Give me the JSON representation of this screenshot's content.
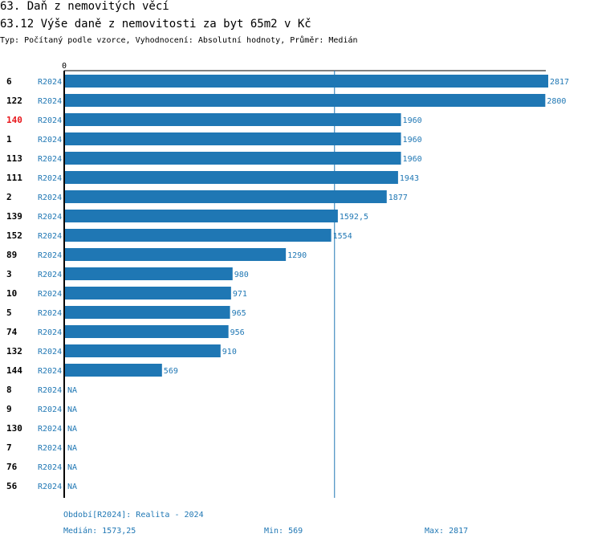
{
  "header": {
    "title": "63. Daň z nemovitých věcí",
    "subtitle": "63.12 Výše daně z nemovitosti za byt 65m2 v Kč",
    "meta": "Typ: Počítaný podle vzorce, Vyhodnocení: Absolutní hodnoty, Průměr: Medián"
  },
  "colors": {
    "bar": "#1f77b4",
    "highlight": "#e8161b",
    "text": "#000000",
    "accent": "#1f77b4"
  },
  "chart_data": {
    "type": "bar",
    "orientation": "horizontal",
    "series_name": "R2024",
    "x_tick_labels": [
      "0"
    ],
    "xlim": [
      0,
      2900
    ],
    "median": 1573.25,
    "highlight_category": "140",
    "categories": [
      "6",
      "122",
      "140",
      "1",
      "113",
      "111",
      "2",
      "139",
      "152",
      "89",
      "3",
      "10",
      "5",
      "74",
      "132",
      "144",
      "8",
      "9",
      "130",
      "7",
      "76",
      "56"
    ],
    "values": [
      2817,
      2800,
      1960,
      1960,
      1960,
      1943,
      1877,
      1592.5,
      1554,
      1290,
      980,
      971,
      965,
      956,
      910,
      569,
      null,
      null,
      null,
      null,
      null,
      null
    ],
    "value_labels": [
      "2817",
      "2800",
      "1960",
      "1960",
      "1960",
      "1943",
      "1877",
      "1592,5",
      "1554",
      "1290",
      "980",
      "971",
      "965",
      "956",
      "910",
      "569",
      "NA",
      "NA",
      "NA",
      "NA",
      "NA",
      "NA"
    ]
  },
  "footer": {
    "period": "Období[R2024]: Realita - 2024",
    "median": "Medián: 1573,25",
    "min": "Min: 569",
    "max": "Max: 2817"
  }
}
